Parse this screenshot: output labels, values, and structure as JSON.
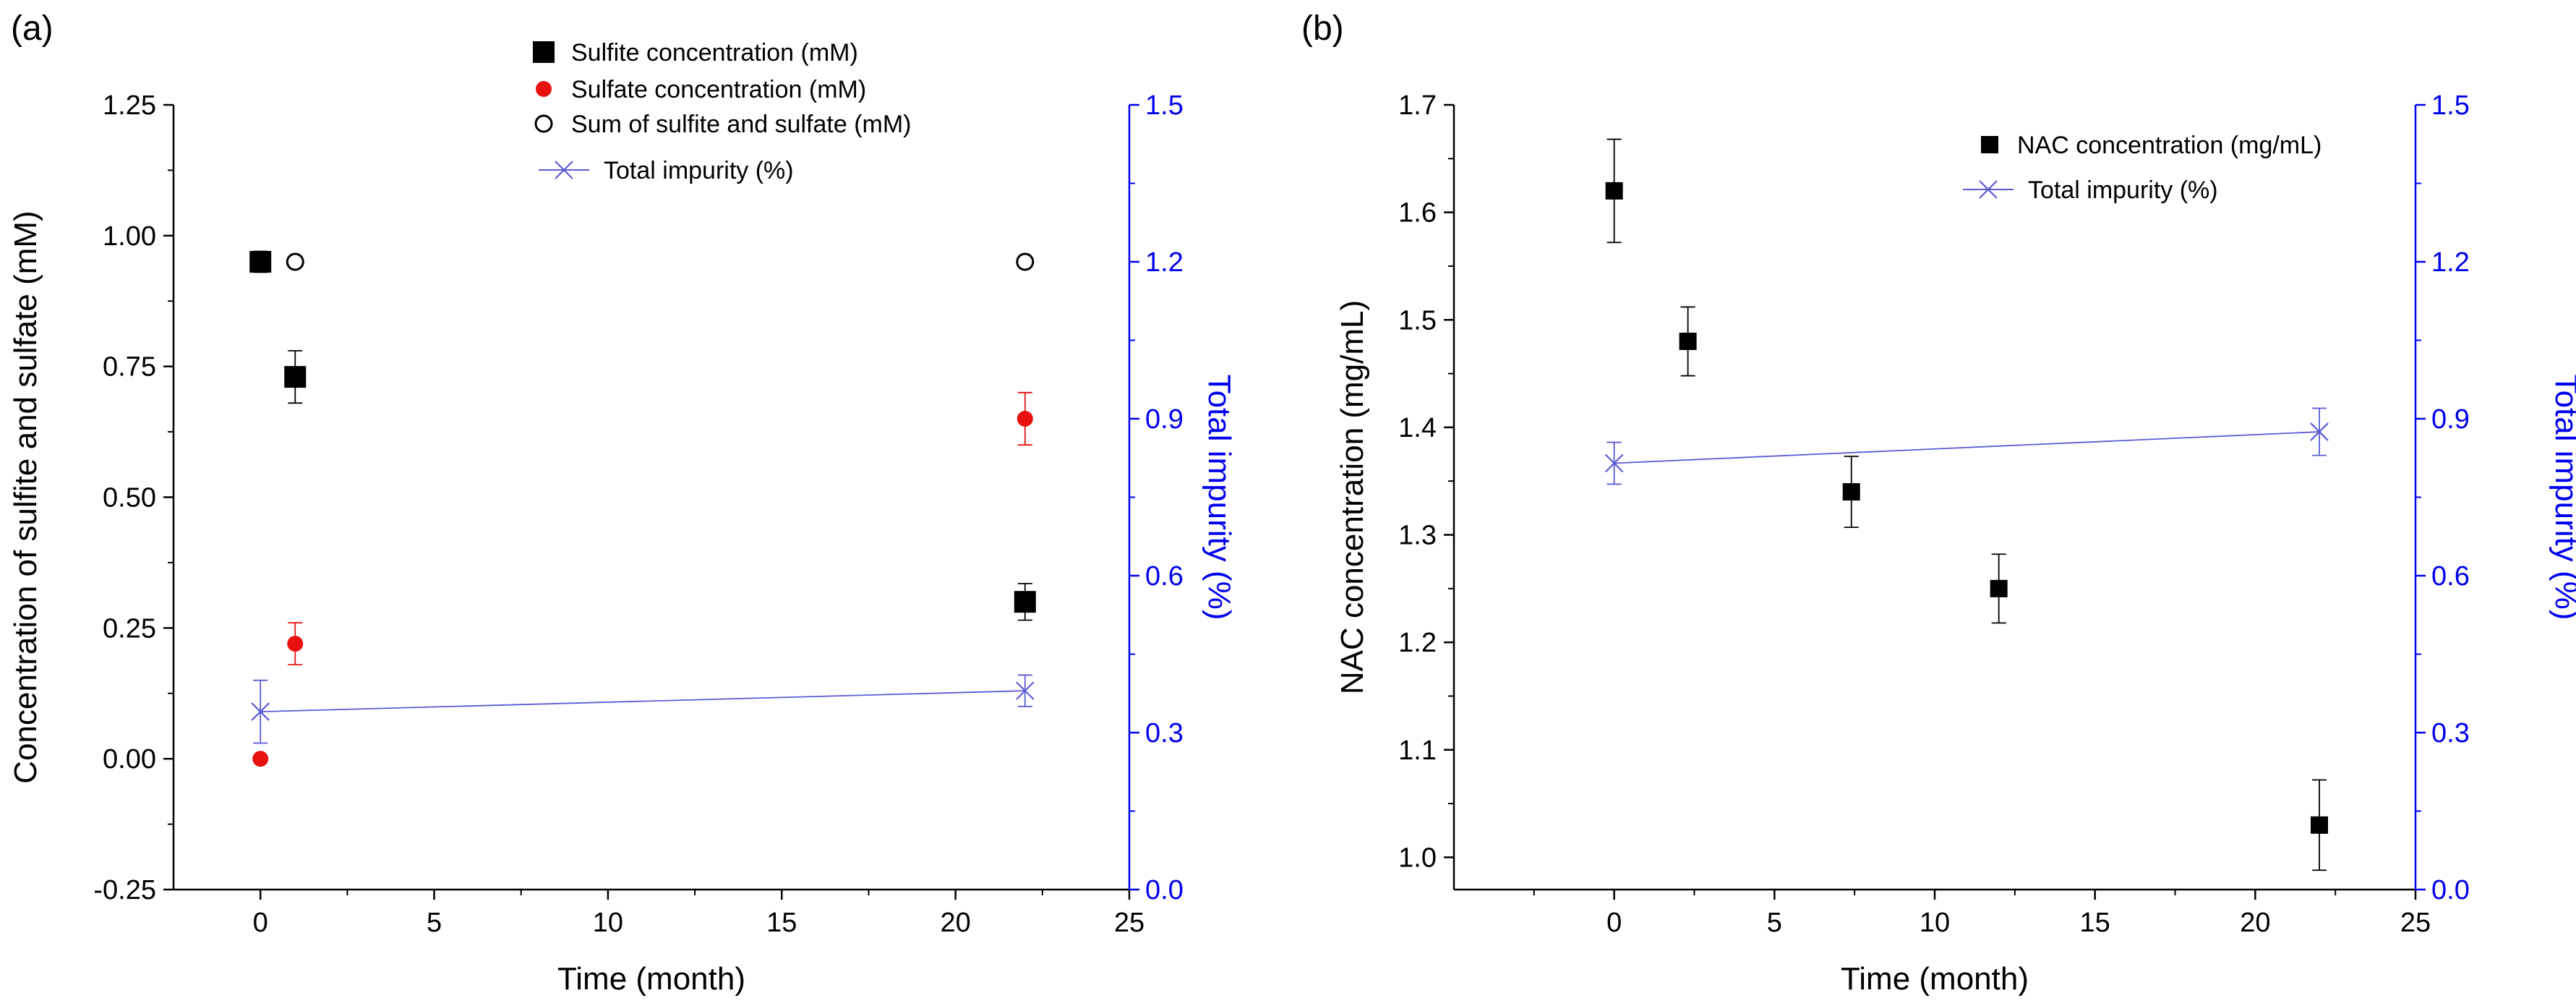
{
  "colors": {
    "black": "#000000",
    "sulfate": "#e8110f",
    "impurity_axis": "#0000ee",
    "impurity_series": "#5b5bd6"
  },
  "chart_data": [
    {
      "panel_label": "(a)",
      "type": "scatter",
      "xlabel": "Time (month)",
      "ylabel": "Concentration of sulfite and sulfate (mM)",
      "y2label": "Total impurity (%)",
      "xlim": [
        -2.5,
        25
      ],
      "ylim": [
        -0.25,
        1.25
      ],
      "y2lim": [
        0,
        1.5
      ],
      "x_ticks": [
        0,
        5,
        10,
        15,
        20,
        25
      ],
      "x_tick_labels": [
        "0",
        "5",
        "10",
        "15",
        "20",
        "25"
      ],
      "y_ticks": [
        -0.25,
        0,
        0.25,
        0.5,
        0.75,
        1.0,
        1.25
      ],
      "y_tick_labels": [
        "-0.25",
        "0.00",
        "0.25",
        "0.50",
        "0.75",
        "1.00",
        "1.25"
      ],
      "y2_ticks": [
        0,
        0.3,
        0.6,
        0.9,
        1.2,
        1.5
      ],
      "y2_tick_labels": [
        "0.0",
        "0.3",
        "0.6",
        "0.9",
        "1.2",
        "1.5"
      ],
      "series": [
        {
          "name": "Sulfite concentration (mM)",
          "axis": "left",
          "marker": "square-large",
          "x": [
            0,
            1,
            22
          ],
          "y": [
            0.95,
            0.73,
            0.3
          ],
          "err": [
            0.02,
            0.05,
            0.035
          ]
        },
        {
          "name": "Sulfate concentration (mM)",
          "axis": "left",
          "marker": "circle-red",
          "x": [
            0,
            1,
            22
          ],
          "y": [
            0.0,
            0.22,
            0.65
          ],
          "err": [
            0.0,
            0.04,
            0.05
          ]
        },
        {
          "name": "Sum of sulfite and sulfate (mM)",
          "axis": "left",
          "marker": "circle-open",
          "x": [
            0,
            1,
            22
          ],
          "y": [
            0.95,
            0.95,
            0.95
          ],
          "err": [
            0.0,
            0.0,
            0.0
          ]
        },
        {
          "name": "Total impurity (%)",
          "axis": "right",
          "marker": "x-line",
          "x": [
            0,
            22
          ],
          "y": [
            0.34,
            0.38
          ],
          "err": [
            0.06,
            0.03
          ]
        }
      ]
    },
    {
      "panel_label": "(b)",
      "type": "scatter",
      "xlabel": "Time (month)",
      "ylabel": "NAC concentration (mg/mL)",
      "y2label": "Total impurity (%)",
      "xlim": [
        -5,
        25
      ],
      "ylim": [
        0.97,
        1.7
      ],
      "y2lim": [
        0,
        1.5
      ],
      "x_ticks": [
        0,
        5,
        10,
        15,
        20,
        25
      ],
      "x_tick_labels": [
        "0",
        "5",
        "10",
        "15",
        "20",
        "25"
      ],
      "y_ticks": [
        1.0,
        1.1,
        1.2,
        1.3,
        1.4,
        1.5,
        1.6,
        1.7
      ],
      "y_tick_labels": [
        "1.0",
        "1.1",
        "1.2",
        "1.3",
        "1.4",
        "1.5",
        "1.6",
        "1.7"
      ],
      "y2_ticks": [
        0,
        0.3,
        0.6,
        0.9,
        1.2,
        1.5
      ],
      "y2_tick_labels": [
        "0.0",
        "0.3",
        "0.6",
        "0.9",
        "1.2",
        "1.5"
      ],
      "series": [
        {
          "name": "NAC concentration (mg/mL)",
          "axis": "left",
          "marker": "square-small",
          "x": [
            0,
            2.3,
            7.4,
            12,
            22
          ],
          "y": [
            1.62,
            1.48,
            1.34,
            1.25,
            1.03
          ],
          "err": [
            0.048,
            0.032,
            0.033,
            0.032,
            0.042
          ]
        },
        {
          "name": "Total impurity (%)",
          "axis": "right",
          "marker": "x-line",
          "x": [
            0,
            22
          ],
          "y": [
            0.815,
            0.875
          ],
          "err": [
            0.04,
            0.045
          ]
        }
      ]
    }
  ]
}
